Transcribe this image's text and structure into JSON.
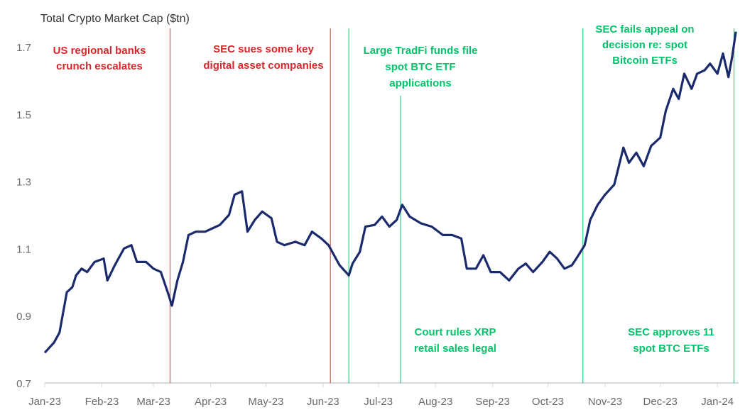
{
  "chart_data": {
    "type": "line",
    "title": "Total Crypto Market Cap ($tn)",
    "xlabel": "",
    "ylabel": "",
    "ylim": [
      0.7,
      1.75
    ],
    "yticks": [
      "0.7",
      "0.9",
      "1.1",
      "1.3",
      "1.5",
      "1.7"
    ],
    "xticks": [
      {
        "date": "2023-01-01",
        "label": "Jan-23"
      },
      {
        "date": "2023-02-01",
        "label": "Feb-23"
      },
      {
        "date": "2023-03-01",
        "label": "Mar-23"
      },
      {
        "date": "2023-04-01",
        "label": "Apr-23"
      },
      {
        "date": "2023-05-01",
        "label": "May-23"
      },
      {
        "date": "2023-06-01",
        "label": "Jun-23"
      },
      {
        "date": "2023-07-01",
        "label": "Jul-23"
      },
      {
        "date": "2023-08-01",
        "label": "Aug-23"
      },
      {
        "date": "2023-09-01",
        "label": "Sep-23"
      },
      {
        "date": "2023-10-01",
        "label": "Oct-23"
      },
      {
        "date": "2023-11-01",
        "label": "Nov-23"
      },
      {
        "date": "2023-12-01",
        "label": "Dec-23"
      },
      {
        "date": "2024-01-01",
        "label": "Jan-24"
      }
    ],
    "grid": false,
    "line_color": "#1a2a6c",
    "series": [
      {
        "points": [
          [
            "2023-01-01",
            0.79
          ],
          [
            "2023-01-06",
            0.82
          ],
          [
            "2023-01-09",
            0.85
          ],
          [
            "2023-01-13",
            0.97
          ],
          [
            "2023-01-16",
            0.985
          ],
          [
            "2023-01-18",
            1.02
          ],
          [
            "2023-01-21",
            1.04
          ],
          [
            "2023-01-24",
            1.03
          ],
          [
            "2023-01-28",
            1.06
          ],
          [
            "2023-02-02",
            1.07
          ],
          [
            "2023-02-04",
            1.005
          ],
          [
            "2023-02-08",
            1.05
          ],
          [
            "2023-02-13",
            1.1
          ],
          [
            "2023-02-17",
            1.11
          ],
          [
            "2023-02-20",
            1.06
          ],
          [
            "2023-02-25",
            1.06
          ],
          [
            "2023-03-01",
            1.04
          ],
          [
            "2023-03-05",
            1.03
          ],
          [
            "2023-03-09",
            0.965
          ],
          [
            "2023-03-11",
            0.93
          ],
          [
            "2023-03-14",
            1.005
          ],
          [
            "2023-03-17",
            1.06
          ],
          [
            "2023-03-20",
            1.14
          ],
          [
            "2023-03-24",
            1.15
          ],
          [
            "2023-03-29",
            1.15
          ],
          [
            "2023-04-02",
            1.16
          ],
          [
            "2023-04-06",
            1.17
          ],
          [
            "2023-04-11",
            1.2
          ],
          [
            "2023-04-14",
            1.26
          ],
          [
            "2023-04-18",
            1.27
          ],
          [
            "2023-04-21",
            1.15
          ],
          [
            "2023-04-25",
            1.185
          ],
          [
            "2023-04-29",
            1.21
          ],
          [
            "2023-05-04",
            1.19
          ],
          [
            "2023-05-07",
            1.12
          ],
          [
            "2023-05-11",
            1.11
          ],
          [
            "2023-05-17",
            1.12
          ],
          [
            "2023-05-22",
            1.11
          ],
          [
            "2023-05-26",
            1.15
          ],
          [
            "2023-05-31",
            1.13
          ],
          [
            "2023-06-04",
            1.11
          ],
          [
            "2023-06-06",
            1.09
          ],
          [
            "2023-06-10",
            1.05
          ],
          [
            "2023-06-15",
            1.02
          ],
          [
            "2023-06-17",
            1.055
          ],
          [
            "2023-06-21",
            1.09
          ],
          [
            "2023-06-24",
            1.165
          ],
          [
            "2023-06-29",
            1.17
          ],
          [
            "2023-07-03",
            1.195
          ],
          [
            "2023-07-07",
            1.165
          ],
          [
            "2023-07-11",
            1.185
          ],
          [
            "2023-07-14",
            1.23
          ],
          [
            "2023-07-18",
            1.195
          ],
          [
            "2023-07-24",
            1.175
          ],
          [
            "2023-07-30",
            1.165
          ],
          [
            "2023-08-05",
            1.14
          ],
          [
            "2023-08-10",
            1.14
          ],
          [
            "2023-08-15",
            1.13
          ],
          [
            "2023-08-18",
            1.04
          ],
          [
            "2023-08-23",
            1.04
          ],
          [
            "2023-08-27",
            1.08
          ],
          [
            "2023-08-31",
            1.03
          ],
          [
            "2023-09-05",
            1.03
          ],
          [
            "2023-09-10",
            1.005
          ],
          [
            "2023-09-15",
            1.04
          ],
          [
            "2023-09-19",
            1.055
          ],
          [
            "2023-09-23",
            1.03
          ],
          [
            "2023-09-28",
            1.06
          ],
          [
            "2023-10-02",
            1.09
          ],
          [
            "2023-10-06",
            1.07
          ],
          [
            "2023-10-10",
            1.04
          ],
          [
            "2023-10-14",
            1.05
          ],
          [
            "2023-10-17",
            1.075
          ],
          [
            "2023-10-21",
            1.11
          ],
          [
            "2023-10-24",
            1.185
          ],
          [
            "2023-10-28",
            1.23
          ],
          [
            "2023-11-01",
            1.26
          ],
          [
            "2023-11-06",
            1.29
          ],
          [
            "2023-11-11",
            1.4
          ],
          [
            "2023-11-14",
            1.355
          ],
          [
            "2023-11-18",
            1.385
          ],
          [
            "2023-11-22",
            1.345
          ],
          [
            "2023-11-26",
            1.405
          ],
          [
            "2023-12-01",
            1.43
          ],
          [
            "2023-12-04",
            1.51
          ],
          [
            "2023-12-08",
            1.575
          ],
          [
            "2023-12-11",
            1.545
          ],
          [
            "2023-12-14",
            1.62
          ],
          [
            "2023-12-18",
            1.575
          ],
          [
            "2023-12-21",
            1.62
          ],
          [
            "2023-12-25",
            1.63
          ],
          [
            "2023-12-28",
            1.65
          ],
          [
            "2024-01-01",
            1.62
          ],
          [
            "2024-01-04",
            1.68
          ],
          [
            "2024-01-07",
            1.61
          ],
          [
            "2024-01-09",
            1.67
          ],
          [
            "2024-01-11",
            1.745
          ]
        ]
      }
    ],
    "colors": {
      "negative_event": "#d9262b",
      "positive_event": "#00c36a"
    },
    "event_lines": [
      {
        "date": "2023-03-10",
        "kind": "negative"
      },
      {
        "date": "2023-06-05",
        "kind": "negative"
      },
      {
        "date": "2023-06-15",
        "kind": "positive"
      },
      {
        "date": "2023-07-13",
        "kind": "positive"
      },
      {
        "date": "2023-10-20",
        "kind": "positive"
      },
      {
        "date": "2024-01-10",
        "kind": "positive"
      }
    ],
    "annotations": [
      {
        "kind": "negative",
        "lines": [
          "US regional banks",
          "crunch escalates"
        ]
      },
      {
        "kind": "negative",
        "lines": [
          "SEC sues some key",
          "digital asset companies"
        ]
      },
      {
        "kind": "positive",
        "lines": [
          "Large TradFi funds file",
          "spot BTC ETF",
          "applications"
        ]
      },
      {
        "kind": "positive",
        "lines": [
          "SEC fails appeal on",
          "decision re: spot",
          "Bitcoin ETFs"
        ]
      },
      {
        "kind": "positive",
        "lines": [
          "Court rules XRP",
          "retail sales legal"
        ]
      },
      {
        "kind": "positive",
        "lines": [
          "SEC approves 11",
          "spot BTC ETFs"
        ]
      }
    ]
  }
}
